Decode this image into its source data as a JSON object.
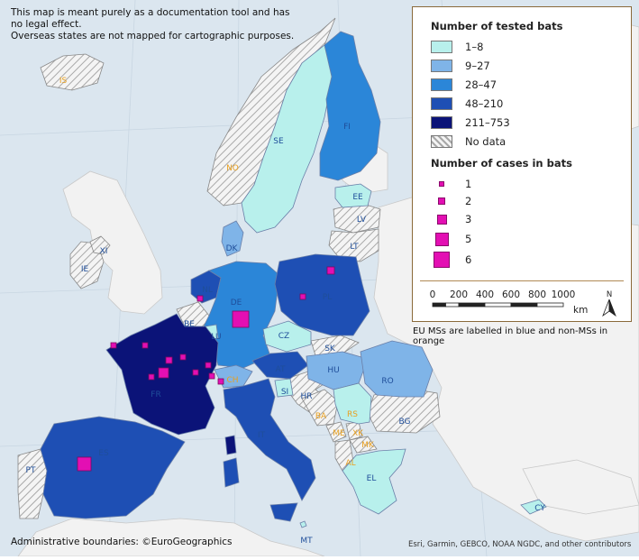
{
  "disclaimer": {
    "line1": "This map is meant purely as a documentation tool and has",
    "line2": "no legal effect.",
    "line3": "Overseas states are not mapped for cartographic purposes."
  },
  "legend": {
    "tested_title": "Number of tested bats",
    "tested_classes": [
      {
        "label": "1–8",
        "color": "#b8f0ec"
      },
      {
        "label": "9–27",
        "color": "#7fb4e8"
      },
      {
        "label": "28–47",
        "color": "#2b86d8"
      },
      {
        "label": "48–210",
        "color": "#1e4fb4"
      },
      {
        "label": "211–753",
        "color": "#0b1378"
      }
    ],
    "no_data_label": "No data",
    "cases_title": "Number of cases in bats",
    "cases_classes": [
      {
        "label": "1"
      },
      {
        "label": "2"
      },
      {
        "label": "3"
      },
      {
        "label": "5"
      },
      {
        "label": "6"
      }
    ],
    "scale_labels": [
      "0",
      "200",
      "400",
      "600",
      "800",
      "1000"
    ],
    "scale_unit": "km",
    "north_label": "N"
  },
  "note": "EU MSs are labelled in blue and non-MSs in orange",
  "credits": {
    "boundaries": "Administrative boundaries: ©EuroGeographics",
    "basemap": "Esri, Garmin, GEBCO, NOAA NGDC, and other contributors"
  },
  "colors": {
    "eu_label": "#1f4e9a",
    "non_eu_label": "#e8a020",
    "cases_marker": "#e30fb3",
    "sea": "#dbe6ef",
    "land_other": "#f2f2f2"
  },
  "countries": {
    "IS": {
      "label": "IS",
      "tested": "No data"
    },
    "NO": {
      "label": "NO",
      "tested": "No data"
    },
    "SE": {
      "label": "SE",
      "tested": "1–8"
    },
    "FI": {
      "label": "FI",
      "tested": "28–47"
    },
    "EE": {
      "label": "EE",
      "tested": "1–8"
    },
    "LV": {
      "label": "LV",
      "tested": "No data"
    },
    "LT": {
      "label": "LT",
      "tested": "No data"
    },
    "DK": {
      "label": "DK",
      "tested": "9–27"
    },
    "XI": {
      "label": "XI",
      "tested": "No data"
    },
    "IE": {
      "label": "IE",
      "tested": "No data"
    },
    "NL": {
      "label": "NL",
      "tested": "48–210",
      "cases": 1
    },
    "BE": {
      "label": "BE",
      "tested": "No data"
    },
    "LU": {
      "label": "LU",
      "tested": "1–8"
    },
    "DE": {
      "label": "DE",
      "tested": "28–47",
      "cases": 6
    },
    "PL": {
      "label": "PL",
      "tested": "48–210",
      "cases": 2
    },
    "CZ": {
      "label": "CZ",
      "tested": "1–8"
    },
    "SK": {
      "label": "SK",
      "tested": "No data"
    },
    "FR": {
      "label": "FR",
      "tested": "211–753",
      "cases": 3
    },
    "CH": {
      "label": "CH",
      "tested": "9–27",
      "cases": 1
    },
    "AT": {
      "label": "AT",
      "tested": "48–210"
    },
    "HU": {
      "label": "HU",
      "tested": "9–27"
    },
    "RO": {
      "label": "RO",
      "tested": "9–27"
    },
    "SI": {
      "label": "SI",
      "tested": "1–8"
    },
    "HR": {
      "label": "HR",
      "tested": "No data"
    },
    "BA": {
      "label": "BA",
      "tested": "No data"
    },
    "RS": {
      "label": "RS",
      "tested": "1–8"
    },
    "ME": {
      "label": "ME",
      "tested": "No data"
    },
    "XK": {
      "label": "XK",
      "tested": "No data"
    },
    "MK": {
      "label": "MK",
      "tested": "No data"
    },
    "AL": {
      "label": "AL",
      "tested": "No data"
    },
    "BG": {
      "label": "BG",
      "tested": "No data"
    },
    "EL": {
      "label": "EL",
      "tested": "1–8"
    },
    "IT": {
      "label": "IT",
      "tested": "48–210"
    },
    "ES": {
      "label": "ES",
      "tested": "48–210",
      "cases": 5
    },
    "PT": {
      "label": "PT",
      "tested": "No data"
    },
    "MT": {
      "label": "MT",
      "tested": "No data"
    },
    "CY": {
      "label": "CY",
      "tested": "1–8"
    }
  }
}
